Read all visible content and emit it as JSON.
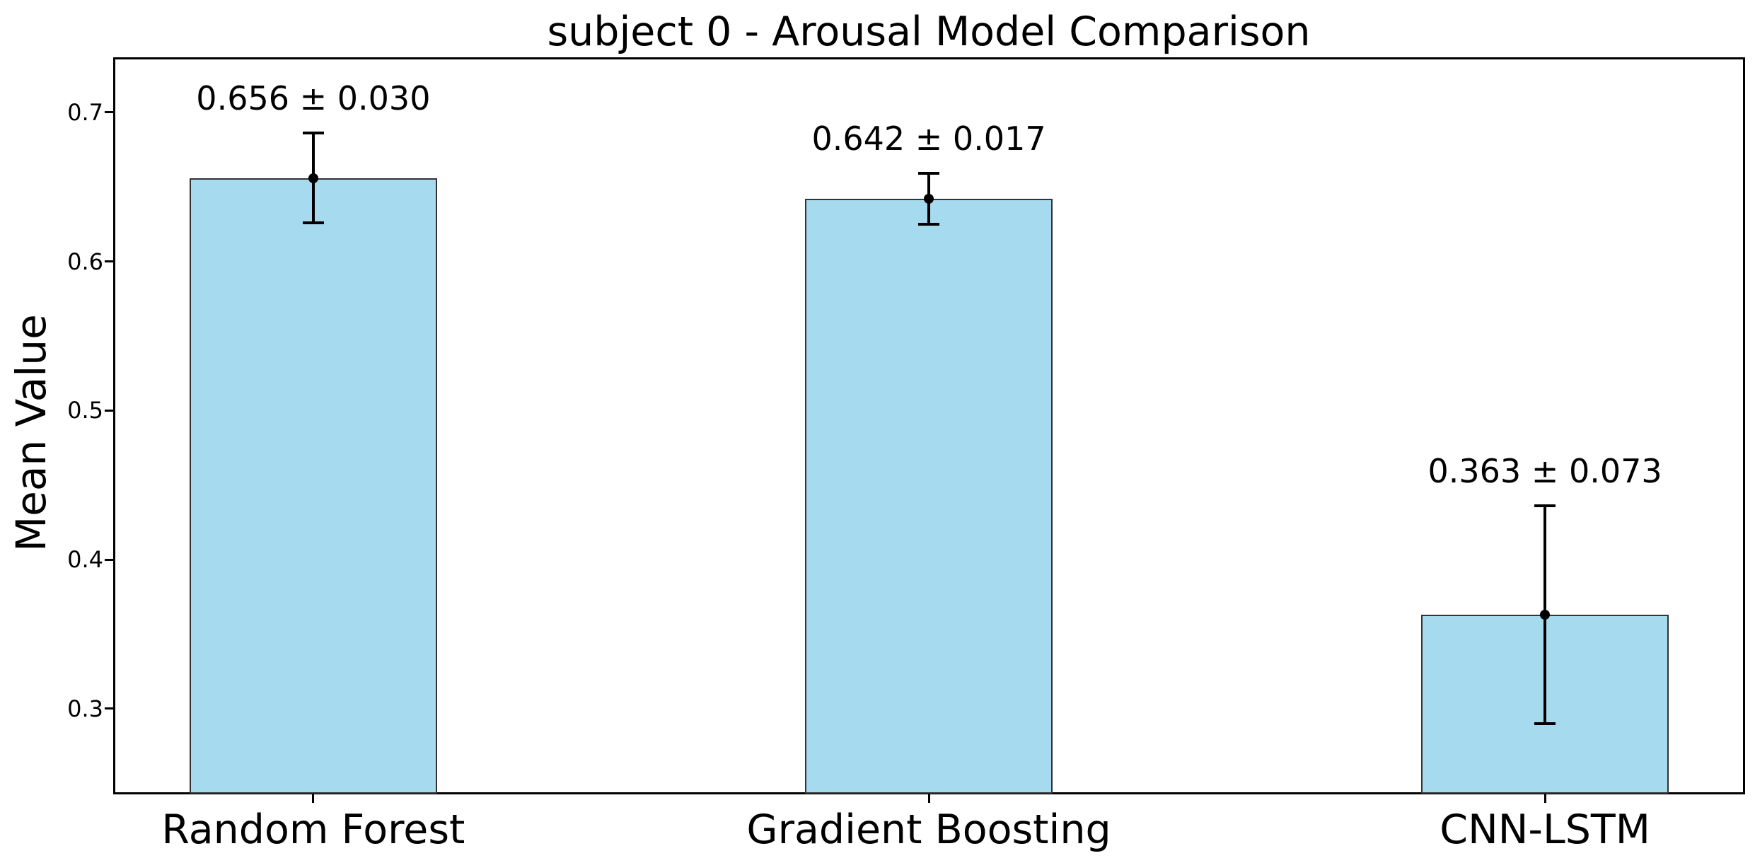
{
  "title": "subject 0 - Arousal Model Comparison",
  "chart_data": {
    "type": "bar",
    "title": "subject 0 - Arousal Model Comparison",
    "xlabel": "",
    "ylabel": "Mean Value",
    "categories": [
      "Random Forest",
      "Gradient Boosting",
      "CNN-LSTM"
    ],
    "values": [
      0.656,
      0.642,
      0.363
    ],
    "errors": [
      0.03,
      0.017,
      0.073
    ],
    "annotations": [
      "0.656 ± 0.030",
      "0.642 ± 0.017",
      "0.363 ± 0.073"
    ],
    "yticks": [
      0.3,
      0.4,
      0.5,
      0.6,
      0.7
    ],
    "ytick_labels": [
      "0.3",
      "0.4",
      "0.5",
      "0.6",
      "0.7"
    ],
    "ylim": [
      0.243,
      0.736
    ],
    "grid": true,
    "grid_linestyle": "dashed",
    "legend_position": "none",
    "colors": {
      "bar_fill": "#a6daee",
      "bar_edge": "#333333",
      "error_bar": "#000000",
      "gridline": "#c6c6c6",
      "spine": "#000000",
      "text": "#000000",
      "background": "#ffffff"
    }
  }
}
